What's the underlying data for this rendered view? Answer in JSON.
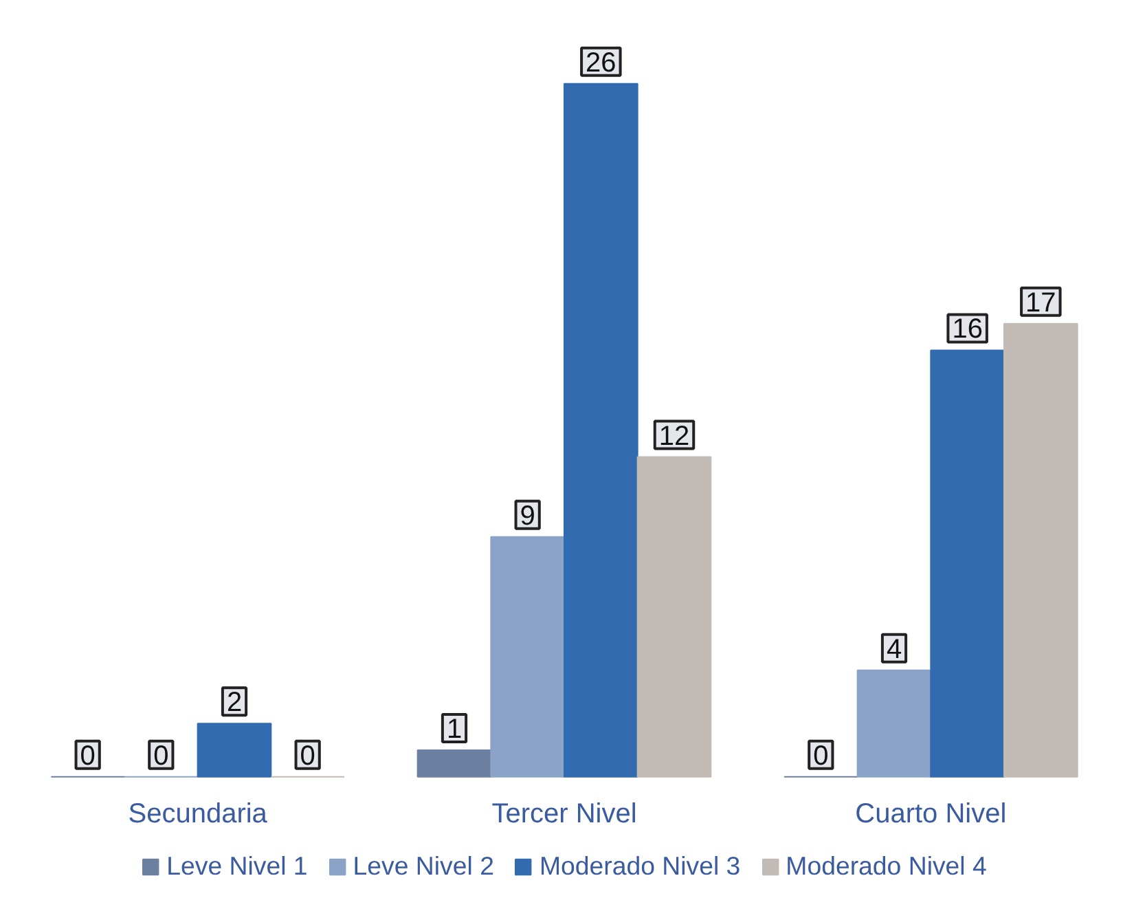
{
  "chart_data": {
    "type": "bar",
    "categories": [
      "Secundaria",
      "Tercer Nivel",
      "Cuarto Nivel"
    ],
    "series": [
      {
        "name": "Leve Nivel 1",
        "color": "#6b7fa0",
        "values": [
          0,
          1,
          0
        ]
      },
      {
        "name": "Leve Nivel 2",
        "color": "#8aa3c6",
        "values": [
          0,
          9,
          4
        ]
      },
      {
        "name": "Moderado Nivel 3",
        "color": "#326bb0",
        "values": [
          2,
          26,
          16
        ]
      },
      {
        "name": "Moderado Nivel 4",
        "color": "#c2bab4",
        "values": [
          0,
          12,
          17
        ]
      }
    ],
    "data_labels": true,
    "legend": "bottom",
    "grid": false
  }
}
